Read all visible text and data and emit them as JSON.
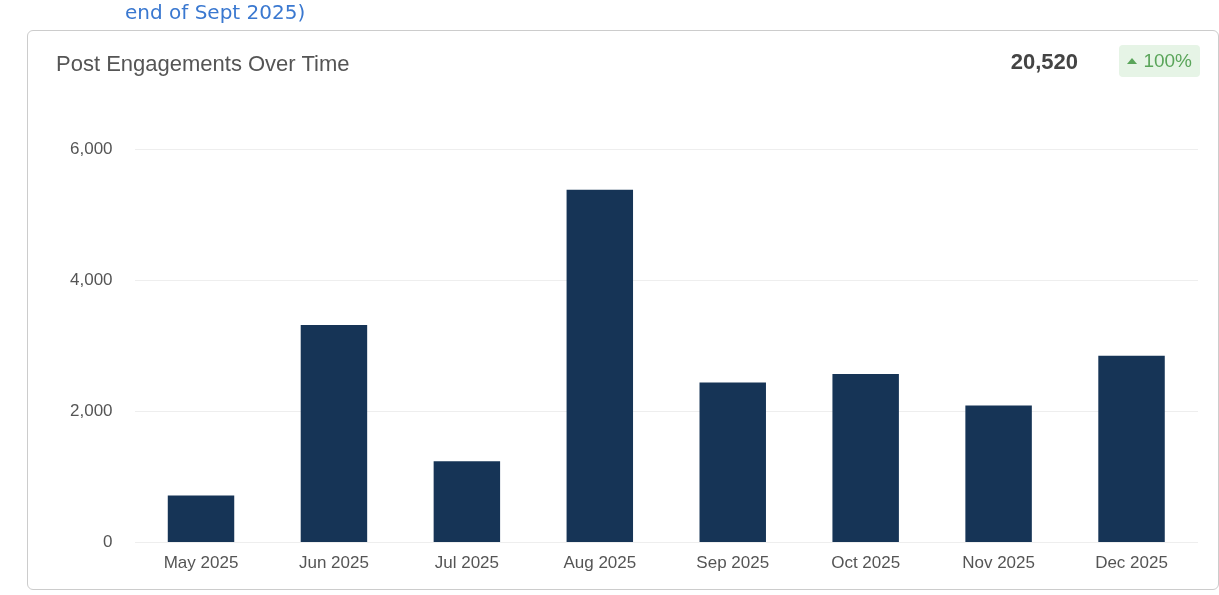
{
  "chart_data": {
    "type": "bar",
    "title": "Post Engagements Over Time",
    "annotations": [
      "end of Sept 2025)",
      "20,520",
      "100%"
    ],
    "categories": [
      "May 2025",
      "Jun 2025",
      "Jul 2025",
      "Aug 2025",
      "Sep 2025",
      "Oct 2025",
      "Nov 2025",
      "Dec 2025"
    ],
    "values": [
      720,
      3320,
      1240,
      5380,
      2440,
      2570,
      2090,
      2850
    ],
    "color": "#163456",
    "ylim": [
      0,
      6000
    ],
    "yticks": [
      0,
      {
        "value": 2000,
        "label": "2,000"
      },
      {
        "value": 4000,
        "label": "4,000"
      },
      {
        "value": 6000,
        "label": "6,000"
      }
    ],
    "grid": "y",
    "legend": false
  }
}
